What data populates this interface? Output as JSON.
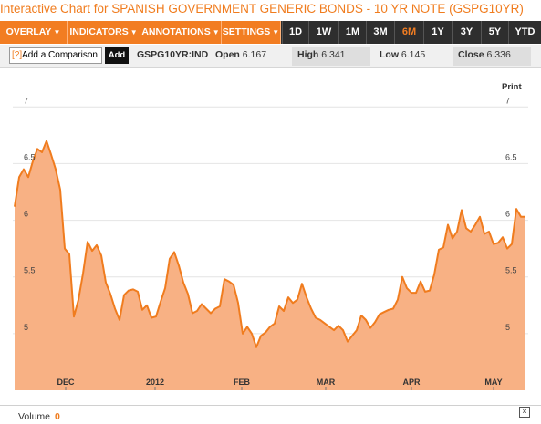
{
  "title": "Interactive Chart for SPANISH GOVERNMENT GENERIC BONDS - 10 YR NOTE (GSPG10YR)",
  "menus": [
    {
      "label": "OVERLAY",
      "caret": "▼"
    },
    {
      "label": "INDICATORS",
      "caret": "▼"
    },
    {
      "label": "ANNOTATIONS",
      "caret": "▼"
    },
    {
      "label": "SETTINGS",
      "caret": "▼"
    }
  ],
  "ranges": [
    "1D",
    "1W",
    "1M",
    "3M",
    "6M",
    "1Y",
    "3Y",
    "5Y",
    "YTD"
  ],
  "active_range": "6M",
  "comparison": {
    "help": "[?]",
    "label": "Add a Comparison",
    "button": "Add"
  },
  "symbol": "GSPG10YR:IND",
  "stats": {
    "open_label": "Open",
    "open": "6.167",
    "high_label": "High",
    "high": "6.341",
    "low_label": "Low",
    "low": "6.145",
    "close_label": "Close",
    "close": "6.336"
  },
  "print_label": "Print",
  "volume": {
    "label": "Volume",
    "value": "0"
  },
  "close_icon": "×",
  "colors": {
    "accent": "#f27d22",
    "line": "#f07c1e",
    "fill": "#f8b184",
    "toolbar": "#2e2e2e"
  },
  "chart_data": {
    "type": "area",
    "x_labels": [
      "DEC",
      "2012",
      "FEB",
      "MAR",
      "APR",
      "MAY"
    ],
    "y_ticks": [
      "7",
      "6.5",
      "6",
      "5.5",
      "5"
    ],
    "ylim": [
      4.5,
      7.3
    ],
    "grid": "horizontal",
    "series": [
      {
        "values": [
          6.12,
          6.38,
          6.45,
          6.38,
          6.52,
          6.63,
          6.6,
          6.7,
          6.58,
          6.45,
          6.27,
          5.75,
          5.7,
          5.15,
          5.3,
          5.53,
          5.81,
          5.73,
          5.78,
          5.69,
          5.45,
          5.35,
          5.22,
          5.12,
          5.34,
          5.38,
          5.39,
          5.37,
          5.21,
          5.25,
          5.14,
          5.15,
          5.28,
          5.4,
          5.66,
          5.72,
          5.6,
          5.45,
          5.35,
          5.18,
          5.2,
          5.26,
          5.22,
          5.18,
          5.22,
          5.24,
          5.48,
          5.46,
          5.43,
          5.27,
          5.0,
          5.06,
          5.0,
          4.88,
          4.98,
          5.01,
          5.06,
          5.09,
          5.24,
          5.2,
          5.32,
          5.27,
          5.3,
          5.44,
          5.32,
          5.22,
          5.14,
          5.12,
          5.09,
          5.06,
          5.03,
          5.07,
          5.03,
          4.93,
          4.98,
          5.03,
          5.16,
          5.12,
          5.05,
          5.1,
          5.17,
          5.19,
          5.21,
          5.22,
          5.3,
          5.5,
          5.4,
          5.36,
          5.36,
          5.46,
          5.37,
          5.38,
          5.52,
          5.74,
          5.76,
          5.96,
          5.84,
          5.9,
          6.09,
          5.93,
          5.9,
          5.96,
          6.03,
          5.88,
          5.9,
          5.79,
          5.8,
          5.85,
          5.75,
          5.79,
          6.1,
          6.03,
          6.03
        ]
      }
    ]
  }
}
